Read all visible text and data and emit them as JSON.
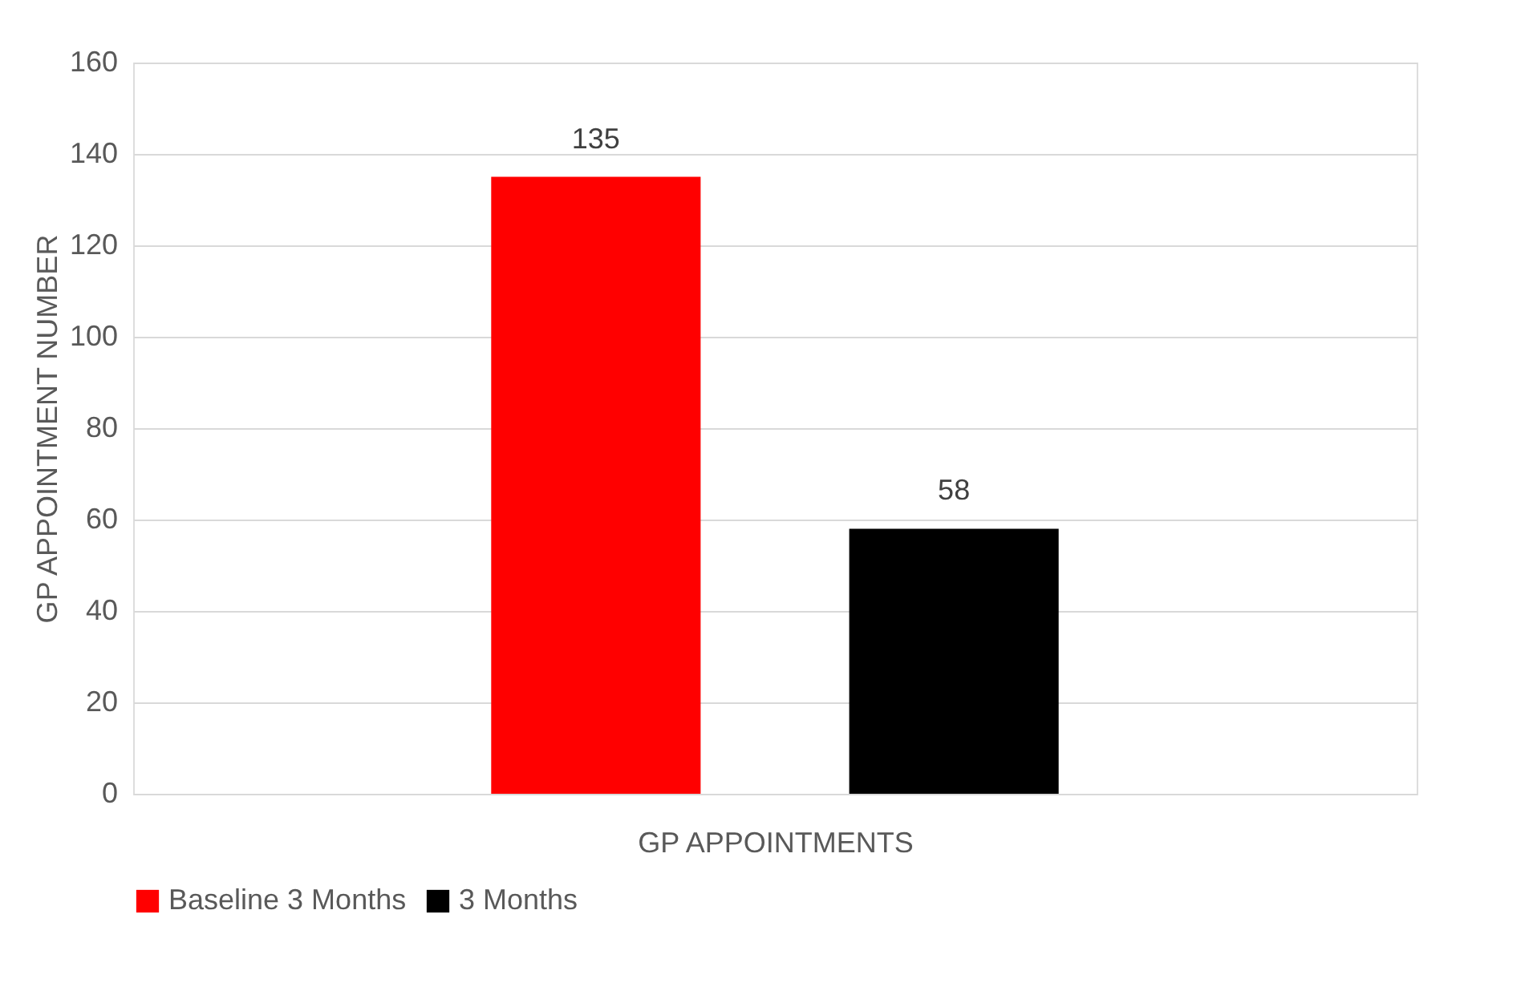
{
  "chart_data": {
    "type": "bar",
    "categories": [
      null
    ],
    "xlabel": "GP APPOINTMENTS",
    "ylabel": "GP APPOINTMENT NUMBER",
    "series": [
      {
        "name": "Baseline 3 Months",
        "color": "#ff0000",
        "values": [
          135
        ]
      },
      {
        "name": "3 Months",
        "color": "#000000",
        "values": [
          58
        ]
      }
    ],
    "ylim": [
      0,
      160
    ],
    "yticks": [
      0,
      20,
      40,
      60,
      80,
      100,
      120,
      140,
      160
    ],
    "grid": "y",
    "legend": "bottom",
    "data_labels": true
  }
}
